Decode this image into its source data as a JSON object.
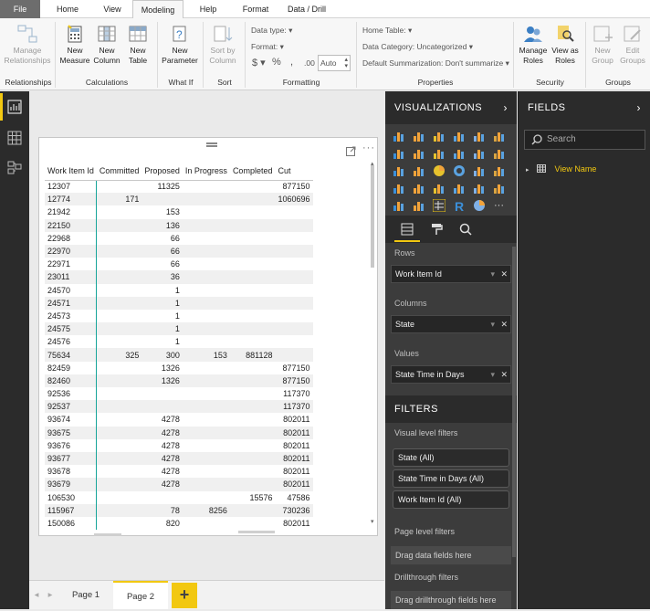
{
  "tabs": [
    "File",
    "Home",
    "View",
    "Modeling",
    "Help",
    "Format",
    "Data / Drill"
  ],
  "ribbon": {
    "manage_relationships": "Manage\nRelationships",
    "new_measure": "New\nMeasure",
    "new_column": "New\nColumn",
    "new_table": "New\nTable",
    "new_parameter": "New\nParameter",
    "sort_by_column": "Sort by\nColumn",
    "data_type": "Data type:",
    "format": "Format:",
    "currency": "$",
    "percent": "%",
    "thousands": ",",
    "decimals": ".00",
    "auto": "Auto",
    "home_table": "Home Table:",
    "data_category": "Data Category: Uncategorized",
    "default_summarization": "Default Summarization: Don't summarize",
    "manage_roles": "Manage\nRoles",
    "view_as_roles": "View as\nRoles",
    "new_group": "New\nGroup",
    "edit_groups": "Edit\nGroups",
    "groups": [
      "Relationships",
      "Calculations",
      "What If",
      "Sort",
      "Formatting",
      "Properties",
      "Security",
      "Groups"
    ]
  },
  "matrix": {
    "headers": [
      "Work Item Id",
      "Committed",
      "Proposed",
      "In Progress",
      "Completed",
      "Cut"
    ],
    "rows": [
      [
        "12307",
        "",
        "11325",
        "",
        "",
        "877150"
      ],
      [
        "12774",
        "171",
        "",
        "",
        "",
        "1060696"
      ],
      [
        "21942",
        "",
        "153",
        "",
        "",
        ""
      ],
      [
        "22150",
        "",
        "136",
        "",
        "",
        ""
      ],
      [
        "22968",
        "",
        "66",
        "",
        "",
        ""
      ],
      [
        "22970",
        "",
        "66",
        "",
        "",
        ""
      ],
      [
        "22971",
        "",
        "66",
        "",
        "",
        ""
      ],
      [
        "23011",
        "",
        "36",
        "",
        "",
        ""
      ],
      [
        "24570",
        "",
        "1",
        "",
        "",
        ""
      ],
      [
        "24571",
        "",
        "1",
        "",
        "",
        ""
      ],
      [
        "24573",
        "",
        "1",
        "",
        "",
        ""
      ],
      [
        "24575",
        "",
        "1",
        "",
        "",
        ""
      ],
      [
        "24576",
        "",
        "1",
        "",
        "",
        ""
      ],
      [
        "75634",
        "325",
        "300",
        "153",
        "881128",
        ""
      ],
      [
        "82459",
        "",
        "1326",
        "",
        "",
        "877150"
      ],
      [
        "82460",
        "",
        "1326",
        "",
        "",
        "877150"
      ],
      [
        "92536",
        "",
        "",
        "",
        "",
        "117370"
      ],
      [
        "92537",
        "",
        "",
        "",
        "",
        "117370"
      ],
      [
        "93674",
        "",
        "4278",
        "",
        "",
        "802011"
      ],
      [
        "93675",
        "",
        "4278",
        "",
        "",
        "802011"
      ],
      [
        "93676",
        "",
        "4278",
        "",
        "",
        "802011"
      ],
      [
        "93677",
        "",
        "4278",
        "",
        "",
        "802011"
      ],
      [
        "93678",
        "",
        "4278",
        "",
        "",
        "802011"
      ],
      [
        "93679",
        "",
        "4278",
        "",
        "",
        "802011"
      ],
      [
        "106530",
        "",
        "",
        "",
        "15576",
        "47586"
      ],
      [
        "115967",
        "",
        "78",
        "8256",
        "",
        "730236"
      ],
      [
        "150086",
        "",
        "820",
        "",
        "",
        "802011"
      ]
    ]
  },
  "pages": {
    "page1": "Page 1",
    "page2": "Page 2",
    "add": "+"
  },
  "visualizations": {
    "title": "VISUALIZATIONS",
    "rows_label": "Rows",
    "rows_field": "Work Item Id",
    "columns_label": "Columns",
    "columns_field": "State",
    "values_label": "Values",
    "values_field": "State Time in Days"
  },
  "filters": {
    "title": "FILTERS",
    "visual_level": "Visual level filters",
    "cards": [
      "State  (All)",
      "State Time in Days  (All)",
      "Work Item Id  (All)"
    ],
    "page_level": "Page level filters",
    "drag_data": "Drag data fields here",
    "drillthrough": "Drillthrough filters",
    "drag_drill": "Drag drillthrough fields here"
  },
  "fields": {
    "title": "FIELDS",
    "search_placeholder": "Search",
    "tables": [
      "View Name"
    ]
  },
  "colors": {
    "accent": "#f2c811",
    "teal": "#17a59a"
  }
}
